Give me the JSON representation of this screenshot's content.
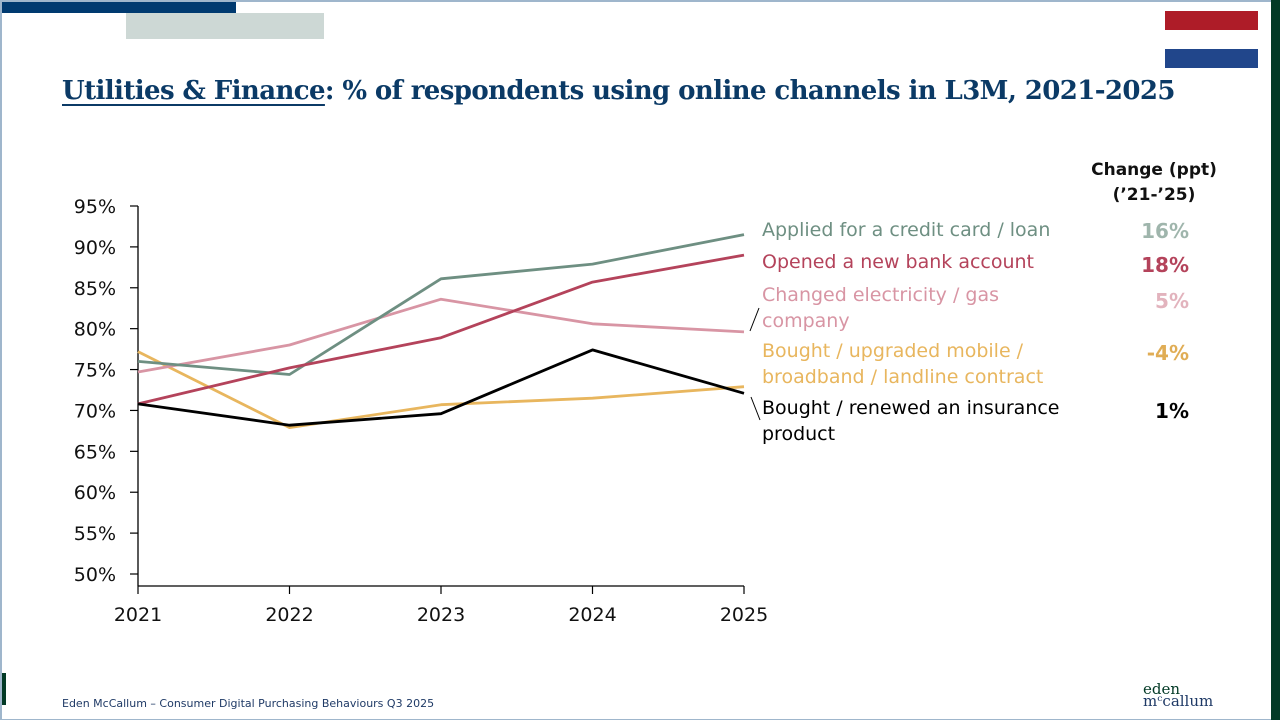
{
  "title": {
    "underlined": "Utilities & Finance",
    "rest": ": % of respondents using online channels in L3M, 2021-2025"
  },
  "decor": {
    "flag_colors": [
      "#ae1c28",
      "#ffffff",
      "#21468b"
    ],
    "brand_dark_green": "#033a26",
    "brand_navy": "#003a70"
  },
  "change_header": {
    "line1": "Change (ppt)",
    "line2": "(’21-’25)"
  },
  "chart_data": {
    "type": "line",
    "title": "Utilities & Finance: % of respondents using online channels in L3M, 2021-2025",
    "xlabel": "",
    "ylabel": "",
    "x": [
      "2021",
      "2022",
      "2023",
      "2024",
      "2025"
    ],
    "ylim": [
      50,
      95
    ],
    "yticks": [
      "50%",
      "55%",
      "60%",
      "65%",
      "70%",
      "75%",
      "80%",
      "85%",
      "90%",
      "95%"
    ],
    "ytick_values": [
      50,
      55,
      60,
      65,
      70,
      75,
      80,
      85,
      90,
      95
    ],
    "grid": false,
    "legend": "right (direct labels)",
    "series": [
      {
        "name": "Applied for a credit card / loan",
        "label_lines": [
          "Applied for a credit card / loan"
        ],
        "color": "#6e8f82",
        "change_color": "#9fb5ac",
        "values": [
          76.0,
          74.4,
          86.1,
          87.9,
          91.5
        ],
        "change": "16%"
      },
      {
        "name": "Opened a new bank account",
        "label_lines": [
          "Opened a new bank account"
        ],
        "color": "#b4435b",
        "change_color": "#b4435b",
        "values": [
          70.8,
          75.2,
          78.9,
          85.7,
          89.0
        ],
        "change": "18%"
      },
      {
        "name": "Changed electricity / gas company",
        "label_lines": [
          "Changed electricity / gas",
          "company"
        ],
        "color": "#d895a4",
        "change_color": "#e2b3bd",
        "values": [
          74.7,
          78.0,
          83.6,
          80.6,
          79.6
        ],
        "change": "5%"
      },
      {
        "name": "Bought / upgraded mobile / broadband / landline contract",
        "label_lines": [
          "Bought / upgraded mobile /",
          "broadband / landline contract"
        ],
        "color": "#e8b65e",
        "change_color": "#e0ad55",
        "values": [
          77.2,
          67.9,
          70.7,
          71.5,
          72.9
        ],
        "change": "-4%"
      },
      {
        "name": "Bought / renewed an insurance product",
        "label_lines": [
          "Bought / renewed an insurance",
          "product"
        ],
        "color": "#000000",
        "change_color": "#000000",
        "values": [
          70.8,
          68.2,
          69.6,
          77.4,
          72.1
        ],
        "change": "1%"
      }
    ]
  },
  "footer": {
    "text": "Eden McCallum – Consumer Digital Purchasing Behaviours Q3 2025",
    "logo_line1": "eden",
    "logo_line2": "mᶜcallum"
  }
}
